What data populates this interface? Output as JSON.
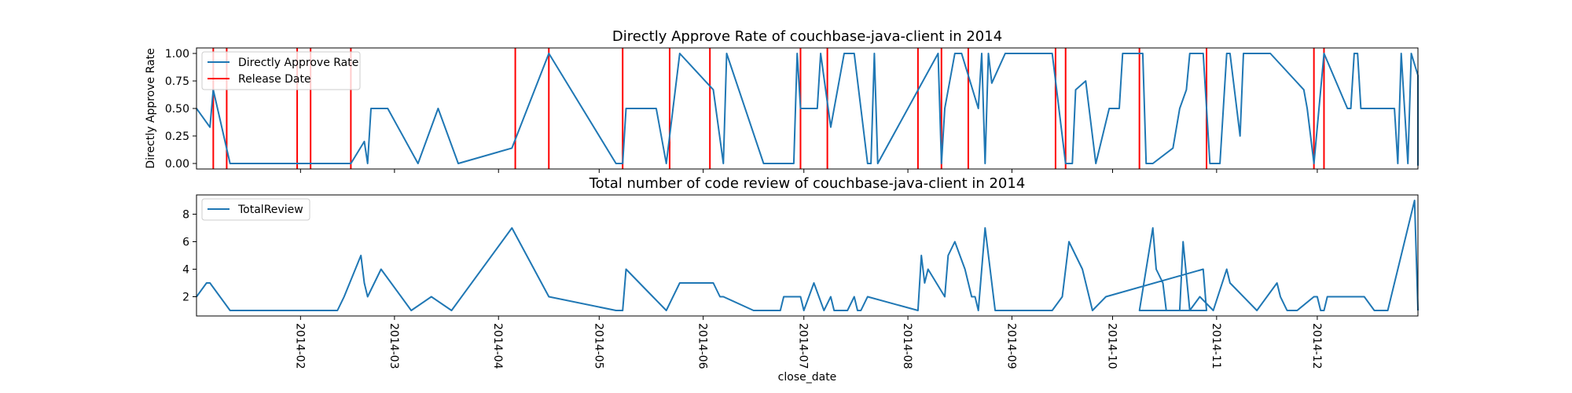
{
  "chart_data": [
    {
      "type": "line",
      "title": "Directly Approve Rate of couchbase-java-client in 2014",
      "xlabel": "",
      "ylabel": "Directly Approve Rate",
      "xlim": [
        "2014-01-01",
        "2014-12-31"
      ],
      "ylim": [
        -0.05,
        1.05
      ],
      "yticks": [
        0.0,
        0.25,
        0.5,
        0.75,
        1.0
      ],
      "ytick_labels": [
        "0.00",
        "0.25",
        "0.50",
        "0.75",
        "1.00"
      ],
      "legend": "top-left",
      "grid": false,
      "series": [
        {
          "name": "Directly Approve Rate",
          "color": "#1f77b4",
          "points": [
            [
              "2014-01-01",
              0.5
            ],
            [
              "2014-01-05",
              0.33
            ],
            [
              "2014-01-06",
              0.67
            ],
            [
              "2014-01-11",
              0.0
            ],
            [
              "2014-02-12",
              0.0
            ],
            [
              "2014-02-16",
              0.0
            ],
            [
              "2014-02-20",
              0.2
            ],
            [
              "2014-02-21",
              0.0
            ],
            [
              "2014-02-22",
              0.5
            ],
            [
              "2014-02-27",
              0.5
            ],
            [
              "2014-03-08",
              0.0
            ],
            [
              "2014-03-14",
              0.5
            ],
            [
              "2014-03-20",
              0.0
            ],
            [
              "2014-04-05",
              0.14
            ],
            [
              "2014-04-16",
              1.0
            ],
            [
              "2014-05-06",
              0.0
            ],
            [
              "2014-05-08",
              0.0
            ],
            [
              "2014-05-09",
              0.5
            ],
            [
              "2014-05-18",
              0.5
            ],
            [
              "2014-05-21",
              0.0
            ],
            [
              "2014-05-25",
              1.0
            ],
            [
              "2014-06-04",
              0.67
            ],
            [
              "2014-06-07",
              0.0
            ],
            [
              "2014-06-08",
              1.0
            ],
            [
              "2014-06-19",
              0.0
            ],
            [
              "2014-06-28",
              0.0
            ],
            [
              "2014-06-29",
              1.0
            ],
            [
              "2014-06-30",
              0.5
            ],
            [
              "2014-07-05",
              0.5
            ],
            [
              "2014-07-06",
              1.0
            ],
            [
              "2014-07-09",
              0.33
            ],
            [
              "2014-07-13",
              1.0
            ],
            [
              "2014-07-16",
              1.0
            ],
            [
              "2014-07-20",
              0.0
            ],
            [
              "2014-07-21",
              0.0
            ],
            [
              "2014-07-22",
              1.0
            ],
            [
              "2014-07-23",
              0.0
            ],
            [
              "2014-08-10",
              1.0
            ],
            [
              "2014-08-11",
              0.0
            ],
            [
              "2014-08-12",
              0.5
            ],
            [
              "2014-08-15",
              1.0
            ],
            [
              "2014-08-17",
              1.0
            ],
            [
              "2014-08-22",
              0.5
            ],
            [
              "2014-08-23",
              1.0
            ],
            [
              "2014-08-24",
              0.0
            ],
            [
              "2014-08-25",
              1.0
            ],
            [
              "2014-08-26",
              0.73
            ],
            [
              "2014-08-30",
              1.0
            ],
            [
              "2014-09-13",
              1.0
            ],
            [
              "2014-09-17",
              0.0
            ],
            [
              "2014-09-19",
              0.0
            ],
            [
              "2014-09-20",
              0.67
            ],
            [
              "2014-09-23",
              0.75
            ],
            [
              "2014-09-26",
              0.0
            ],
            [
              "2014-09-30",
              0.5
            ],
            [
              "2014-10-03",
              0.5
            ],
            [
              "2014-10-04",
              1.0
            ],
            [
              "2014-10-10",
              1.0
            ],
            [
              "2014-10-11",
              0.0
            ],
            [
              "2014-10-13",
              0.0
            ],
            [
              "2014-10-19",
              0.14
            ],
            [
              "2014-10-21",
              0.5
            ],
            [
              "2014-10-23",
              0.67
            ],
            [
              "2014-10-24",
              1.0
            ],
            [
              "2014-10-28",
              1.0
            ],
            [
              "2014-10-30",
              0.0
            ],
            [
              "2014-11-02",
              0.0
            ],
            [
              "2014-11-04",
              1.0
            ],
            [
              "2014-11-05",
              1.0
            ],
            [
              "2014-11-08",
              0.25
            ],
            [
              "2014-11-09",
              1.0
            ],
            [
              "2014-11-17",
              1.0
            ],
            [
              "2014-11-27",
              0.67
            ],
            [
              "2014-11-28",
              0.5
            ],
            [
              "2014-11-30",
              0.0
            ],
            [
              "2014-12-03",
              1.0
            ],
            [
              "2014-12-10",
              0.5
            ],
            [
              "2014-12-11",
              0.5
            ],
            [
              "2014-12-12",
              1.0
            ],
            [
              "2014-12-13",
              1.0
            ],
            [
              "2014-12-14",
              0.5
            ],
            [
              "2014-12-18",
              0.5
            ],
            [
              "2014-12-21",
              0.5
            ],
            [
              "2014-12-24",
              0.5
            ],
            [
              "2014-12-25",
              0.0
            ],
            [
              "2014-12-26",
              1.0
            ],
            [
              "2014-12-28",
              0.0
            ],
            [
              "2014-12-29",
              1.0
            ],
            [
              "2014-12-31",
              0.8
            ],
            [
              "2014-12-31",
              0.78
            ],
            [
              "2014-12-31",
              -0.02
            ]
          ]
        },
        {
          "name": "Release Date",
          "color": "#ff0000",
          "dates": [
            "2014-01-06",
            "2014-01-10",
            "2014-01-31",
            "2014-02-04",
            "2014-02-16",
            "2014-04-06",
            "2014-04-16",
            "2014-05-08",
            "2014-05-22",
            "2014-06-03",
            "2014-06-30",
            "2014-07-08",
            "2014-08-04",
            "2014-08-11",
            "2014-08-19",
            "2014-09-14",
            "2014-09-17",
            "2014-10-09",
            "2014-10-29",
            "2014-11-30",
            "2014-12-03"
          ]
        }
      ]
    },
    {
      "type": "line",
      "title": "Total number of code review of couchbase-java-client in 2014",
      "xlabel": "close_date",
      "ylabel": "",
      "xlim": [
        "2014-01-01",
        "2014-12-31"
      ],
      "ylim": [
        0.6,
        9.4
      ],
      "yticks": [
        2,
        4,
        6,
        8
      ],
      "ytick_labels": [
        "2",
        "4",
        "6",
        "8"
      ],
      "xticks": [
        "2014-02-01",
        "2014-03-01",
        "2014-04-01",
        "2014-05-01",
        "2014-06-01",
        "2014-07-01",
        "2014-08-01",
        "2014-09-01",
        "2014-10-01",
        "2014-11-01",
        "2014-12-01"
      ],
      "xtick_labels": [
        "2014-02",
        "2014-03",
        "2014-04",
        "2014-05",
        "2014-06",
        "2014-07",
        "2014-08",
        "2014-09",
        "2014-10",
        "2014-11",
        "2014-12"
      ],
      "legend": "top-left",
      "grid": false,
      "series": [
        {
          "name": "TotalReview",
          "color": "#1f77b4",
          "points": [
            [
              "2014-01-01",
              2
            ],
            [
              "2014-01-04",
              3
            ],
            [
              "2014-01-05",
              3
            ],
            [
              "2014-01-11",
              1
            ],
            [
              "2014-02-08",
              1
            ],
            [
              "2014-02-12",
              1
            ],
            [
              "2014-02-14",
              2
            ],
            [
              "2014-02-19",
              5
            ],
            [
              "2014-02-20",
              3
            ],
            [
              "2014-02-21",
              2
            ],
            [
              "2014-02-25",
              4
            ],
            [
              "2014-03-06",
              1
            ],
            [
              "2014-03-12",
              2
            ],
            [
              "2014-03-18",
              1
            ],
            [
              "2014-04-05",
              7
            ],
            [
              "2014-04-16",
              2
            ],
            [
              "2014-05-06",
              1
            ],
            [
              "2014-05-08",
              1
            ],
            [
              "2014-05-09",
              4
            ],
            [
              "2014-05-17",
              2
            ],
            [
              "2014-05-21",
              1
            ],
            [
              "2014-05-25",
              3
            ],
            [
              "2014-06-04",
              3
            ],
            [
              "2014-06-06",
              2
            ],
            [
              "2014-06-07",
              2
            ],
            [
              "2014-06-16",
              1
            ],
            [
              "2014-06-24",
              1
            ],
            [
              "2014-06-25",
              2
            ],
            [
              "2014-06-30",
              2
            ],
            [
              "2014-07-01",
              1
            ],
            [
              "2014-07-04",
              3
            ],
            [
              "2014-07-07",
              1
            ],
            [
              "2014-07-09",
              2
            ],
            [
              "2014-07-10",
              1
            ],
            [
              "2014-07-14",
              1
            ],
            [
              "2014-07-16",
              2
            ],
            [
              "2014-07-17",
              1
            ],
            [
              "2014-07-18",
              1
            ],
            [
              "2014-07-20",
              2
            ],
            [
              "2014-08-04",
              1
            ],
            [
              "2014-08-05",
              5
            ],
            [
              "2014-08-06",
              3
            ],
            [
              "2014-08-07",
              4
            ],
            [
              "2014-08-12",
              2
            ],
            [
              "2014-08-13",
              5
            ],
            [
              "2014-08-15",
              6
            ],
            [
              "2014-08-18",
              4
            ],
            [
              "2014-08-20",
              2
            ],
            [
              "2014-08-21",
              2
            ],
            [
              "2014-08-22",
              1
            ],
            [
              "2014-08-24",
              7
            ],
            [
              "2014-08-27",
              1
            ],
            [
              "2014-09-13",
              1
            ],
            [
              "2014-09-16",
              2
            ],
            [
              "2014-09-18",
              6
            ],
            [
              "2014-09-22",
              4
            ],
            [
              "2014-09-25",
              1
            ],
            [
              "2014-09-29",
              2
            ],
            [
              "2014-10-28",
              4
            ],
            [
              "2014-10-29",
              1
            ],
            [
              "2014-10-09",
              1
            ],
            [
              "2014-10-13",
              7
            ],
            [
              "2014-10-14",
              4
            ],
            [
              "2014-10-16",
              3
            ],
            [
              "2014-10-17",
              1
            ],
            [
              "2014-10-21",
              1
            ],
            [
              "2014-10-22",
              6
            ],
            [
              "2014-10-24",
              1
            ],
            [
              "2014-10-27",
              2
            ],
            [
              "2014-10-31",
              1
            ],
            [
              "2014-11-04",
              4
            ],
            [
              "2014-11-05",
              3
            ],
            [
              "2014-11-13",
              1
            ],
            [
              "2014-11-19",
              3
            ],
            [
              "2014-11-20",
              2
            ],
            [
              "2014-11-22",
              1
            ],
            [
              "2014-11-25",
              1
            ],
            [
              "2014-11-30",
              2
            ],
            [
              "2014-12-01",
              2
            ],
            [
              "2014-12-02",
              1
            ],
            [
              "2014-12-03",
              1
            ],
            [
              "2014-12-04",
              2
            ],
            [
              "2014-12-15",
              2
            ],
            [
              "2014-12-18",
              1
            ],
            [
              "2014-12-22",
              1
            ],
            [
              "2014-12-30",
              9
            ],
            [
              "2014-12-31",
              1
            ]
          ]
        }
      ]
    }
  ],
  "legend_top": [
    "Directly Approve Rate",
    "Release Date"
  ],
  "legend_bottom": [
    "TotalReview"
  ]
}
